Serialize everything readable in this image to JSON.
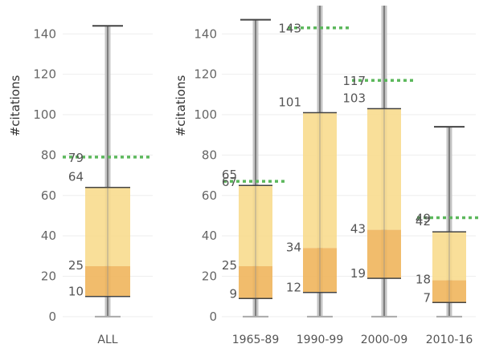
{
  "chart_data": [
    {
      "type": "boxplot",
      "ylabel": "#citations",
      "ylim": [
        -4,
        154
      ],
      "yticks": [
        0,
        20,
        40,
        60,
        80,
        100,
        120,
        140
      ],
      "categories": [
        "ALL"
      ],
      "boxes": [
        {
          "category": "ALL",
          "whisker_low": 0,
          "q1": 10,
          "median": 25,
          "q3": 64,
          "mean": 79,
          "whisker_high": 144
        }
      ],
      "colors": {
        "lower_box": "#f0b55c",
        "upper_box": "#f8dc8e",
        "mean_line": "#5cb85c",
        "whisker": "#555555"
      }
    },
    {
      "type": "boxplot",
      "ylabel": "#citations",
      "ylim": [
        -4,
        154
      ],
      "yticks": [
        0,
        20,
        40,
        60,
        80,
        100,
        120,
        140
      ],
      "categories": [
        "1965-89",
        "1990-99",
        "2000-09",
        "2010-16"
      ],
      "boxes": [
        {
          "category": "1965-89",
          "whisker_low": 0,
          "q1": 9,
          "median": 25,
          "q3": 65,
          "mean": 67,
          "whisker_high": 147
        },
        {
          "category": "1990-99",
          "whisker_low": 0,
          "q1": 12,
          "median": 34,
          "q3": 101,
          "mean": 143,
          "whisker_high": 154
        },
        {
          "category": "2000-09",
          "whisker_low": 0,
          "q1": 19,
          "median": 43,
          "q3": 103,
          "mean": 117,
          "whisker_high": 154
        },
        {
          "category": "2010-16",
          "whisker_low": 0,
          "q1": 7,
          "median": 18,
          "q3": 42,
          "mean": 49,
          "whisker_high": 94
        }
      ],
      "colors": {
        "lower_box": "#f0b55c",
        "upper_box": "#f8dc8e",
        "mean_line": "#5cb85c",
        "whisker": "#555555"
      }
    }
  ]
}
